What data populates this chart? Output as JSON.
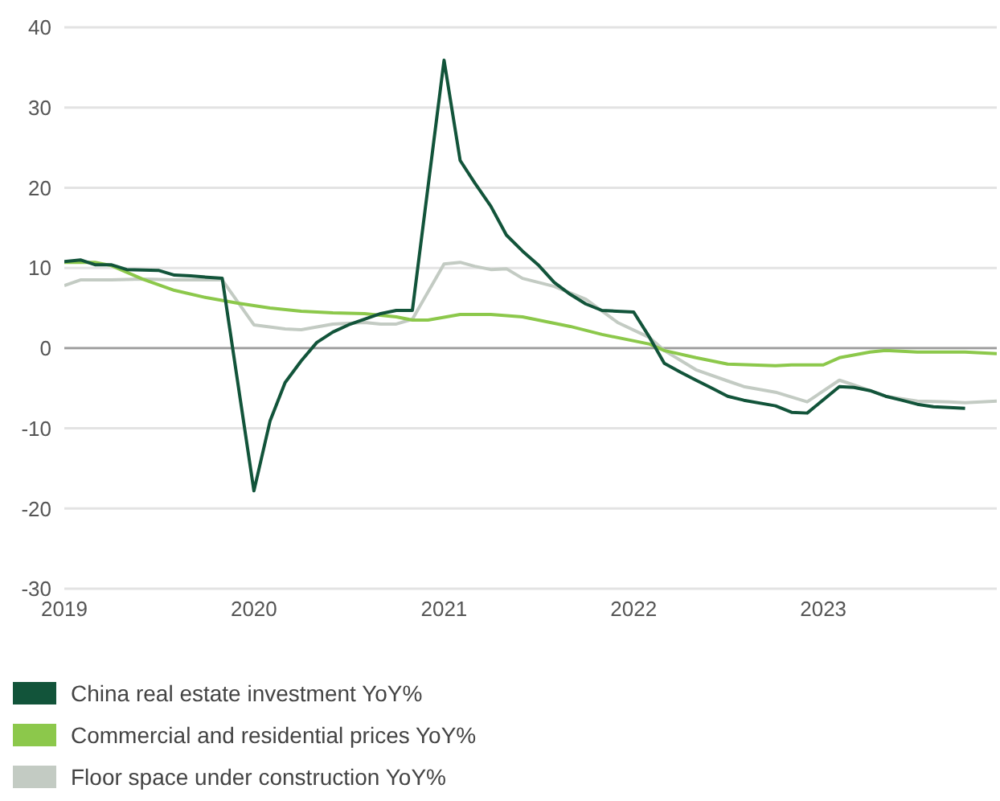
{
  "chart_data": {
    "type": "line",
    "xlim": [
      "2019-01",
      "2023-12"
    ],
    "xticks": [
      "2019",
      "2020",
      "2021",
      "2022",
      "2023"
    ],
    "ylim": [
      -30,
      40
    ],
    "yticks": [
      -30,
      -20,
      -10,
      0,
      10,
      20,
      30,
      40
    ],
    "grid": "y",
    "legend": "bottom",
    "marker": "none",
    "line_style": "solid",
    "ref_lines": [
      {
        "axis": "y",
        "value": 0,
        "color": "#9e9e9e"
      }
    ],
    "series": [
      {
        "name": "China real estate investment YoY%",
        "color": "#12543a",
        "x": [
          "2019-01",
          "2019-02",
          "2019-03",
          "2019-04",
          "2019-05",
          "2019-07",
          "2019-08",
          "2019-09",
          "2019-11",
          "2020-01",
          "2020-02",
          "2020-03",
          "2020-04",
          "2020-05",
          "2020-06",
          "2020-07",
          "2020-08",
          "2020-09",
          "2020-10",
          "2020-11",
          "2021-01",
          "2021-02",
          "2021-03",
          "2021-04",
          "2021-05",
          "2021-06",
          "2021-07",
          "2021-08",
          "2021-09",
          "2021-10",
          "2021-11",
          "2022-01",
          "2022-02",
          "2022-03",
          "2022-04",
          "2022-05",
          "2022-06",
          "2022-07",
          "2022-08",
          "2022-10",
          "2022-11",
          "2022-12",
          "2023-02",
          "2023-03",
          "2023-04",
          "2023-05",
          "2023-06",
          "2023-07",
          "2023-08",
          "2023-09",
          "2023-10"
        ],
        "values": [
          10.8,
          11.0,
          10.4,
          10.4,
          9.8,
          9.7,
          9.1,
          9.0,
          8.7,
          -17.8,
          -9.1,
          -4.3,
          -1.6,
          0.7,
          2.0,
          2.9,
          3.6,
          4.3,
          4.7,
          4.7,
          35.9,
          23.4,
          20.6,
          17.7,
          14.1,
          12.1,
          10.4,
          8.2,
          6.7,
          5.5,
          4.7,
          4.5,
          1.3,
          -1.9,
          -3.0,
          -4.0,
          -5.0,
          -6.0,
          -6.5,
          -7.2,
          -8.0,
          -8.1,
          -4.8,
          -4.9,
          -5.3,
          -6.0,
          -6.5,
          -7.0,
          -7.3,
          -7.4,
          -7.5
        ]
      },
      {
        "name": "Commercial and residential prices YoY%",
        "color": "#8cc84b",
        "x": [
          "2019-01",
          "2019-03",
          "2019-04",
          "2019-06",
          "2019-08",
          "2019-10",
          "2019-12",
          "2020-02",
          "2020-04",
          "2020-06",
          "2020-08",
          "2020-10",
          "2020-11",
          "2020-12",
          "2021-02",
          "2021-04",
          "2021-06",
          "2021-09",
          "2021-11",
          "2022-02",
          "2022-03",
          "2022-05",
          "2022-07",
          "2022-10",
          "2022-11",
          "2023-01",
          "2023-02",
          "2023-04",
          "2023-05",
          "2023-07",
          "2023-10",
          "2023-12"
        ],
        "values": [
          10.7,
          10.7,
          10.3,
          8.6,
          7.2,
          6.3,
          5.6,
          5.0,
          4.6,
          4.4,
          4.3,
          3.9,
          3.5,
          3.5,
          4.2,
          4.2,
          3.9,
          2.7,
          1.7,
          0.5,
          -0.3,
          -1.2,
          -2.0,
          -2.2,
          -2.1,
          -2.1,
          -1.2,
          -0.5,
          -0.3,
          -0.5,
          -0.5,
          -0.7
        ]
      },
      {
        "name": "Floor space under construction YoY%",
        "color": "#c3cbc3",
        "x": [
          "2019-01",
          "2019-02",
          "2019-04",
          "2019-06",
          "2019-08",
          "2019-11",
          "2020-01",
          "2020-03",
          "2020-04",
          "2020-06",
          "2020-08",
          "2020-09",
          "2020-10",
          "2020-11",
          "2021-01",
          "2021-02",
          "2021-03",
          "2021-04",
          "2021-05",
          "2021-06",
          "2021-08",
          "2021-10",
          "2021-12",
          "2022-02",
          "2022-03",
          "2022-05",
          "2022-07",
          "2022-08",
          "2022-10",
          "2022-12",
          "2023-02",
          "2023-03",
          "2023-05",
          "2023-07",
          "2023-09",
          "2023-10",
          "2023-12"
        ],
        "values": [
          7.8,
          8.5,
          8.5,
          8.6,
          8.5,
          8.5,
          2.9,
          2.4,
          2.3,
          3.0,
          3.2,
          3.0,
          3.0,
          3.6,
          10.5,
          10.7,
          10.2,
          9.8,
          9.9,
          8.7,
          7.7,
          6.1,
          3.2,
          1.3,
          -0.3,
          -2.7,
          -4.1,
          -4.8,
          -5.5,
          -6.7,
          -4.0,
          -4.6,
          -6.0,
          -6.6,
          -6.7,
          -6.8,
          -6.6
        ]
      }
    ]
  }
}
